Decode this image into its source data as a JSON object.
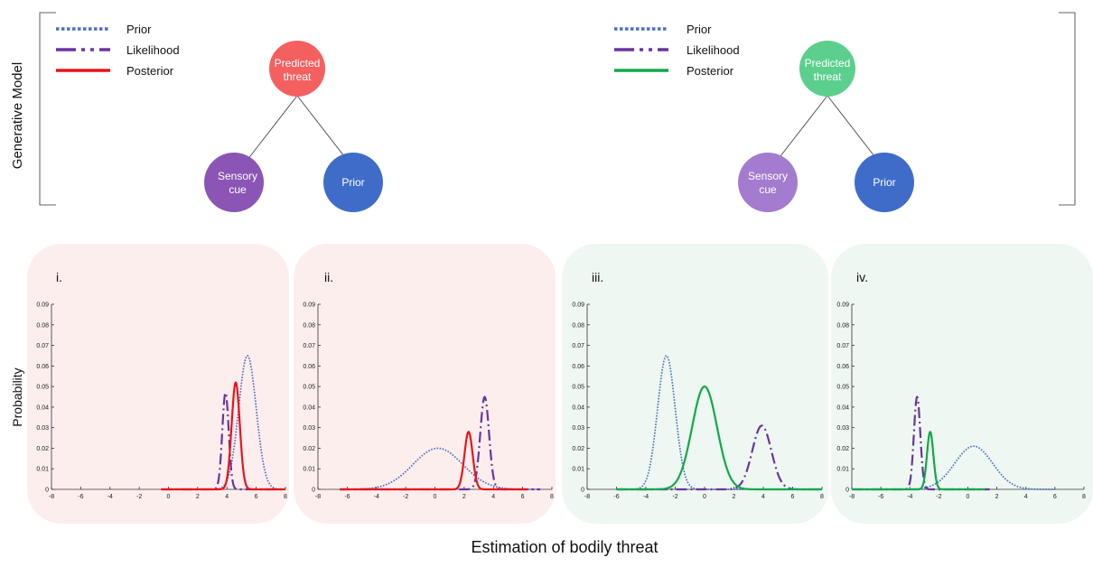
{
  "generative_model": {
    "label": "Generative Model",
    "left": {
      "legend": [
        {
          "label": "Prior",
          "style": "dotted",
          "color": "#4a6fc4"
        },
        {
          "label": "Likelihood",
          "style": "dashdot",
          "color": "#6a35a0"
        },
        {
          "label": "Posterior",
          "style": "solid",
          "color": "#e8141a"
        }
      ],
      "nodes": {
        "top": {
          "line1": "Predicted",
          "line2": "threat",
          "color": "#f46060"
        },
        "cue": {
          "line1": "Sensory",
          "line2": "cue",
          "color": "#8a55b5"
        },
        "prior": {
          "line1": "Prior",
          "color": "#3f6cc8"
        }
      }
    },
    "right": {
      "legend": [
        {
          "label": "Prior",
          "style": "dotted",
          "color": "#4a6fc4"
        },
        {
          "label": "Likelihood",
          "style": "dashdot",
          "color": "#6a35a0"
        },
        {
          "label": "Posterior",
          "style": "solid",
          "color": "#12a84a"
        }
      ],
      "nodes": {
        "top": {
          "line1": "Predicted",
          "line2": "threat",
          "color": "#5ccf8c"
        },
        "cue": {
          "line1": "Sensory",
          "line2": "cue",
          "color": "#a47ccf"
        },
        "prior": {
          "line1": "Prior",
          "color": "#3f6cc8"
        }
      }
    }
  },
  "y_axis_label": "Probability",
  "x_axis_label": "Estimation of bodily threat",
  "colors": {
    "prior": "#4a6fc4",
    "likelihood": "#6a35a0",
    "posterior_red": "#e8141a",
    "posterior_green": "#12a84a",
    "panel_red": "#fdeeee",
    "panel_green": "#eef7f1"
  },
  "chart_data": [
    {
      "type": "line",
      "panel": "i.",
      "theme": "red",
      "xlim": [
        -8,
        8
      ],
      "ylim": [
        0,
        0.09
      ],
      "xticks": [
        "-8",
        "-6",
        "-4",
        "-2",
        "0",
        "2",
        "4",
        "6",
        "8"
      ],
      "yticks": [
        "0",
        "0.01",
        "0.02",
        "0.03",
        "0.04",
        "0.05",
        "0.06",
        "0.07",
        "0.08",
        "0.09"
      ],
      "series": [
        {
          "name": "Prior",
          "kind": "prior",
          "mean": 5.4,
          "peak": 0.065,
          "sd": 0.6,
          "range": [
            -0.5,
            8
          ]
        },
        {
          "name": "Likelihood",
          "kind": "likelihood",
          "mean": 3.9,
          "peak": 0.047,
          "sd": 0.22,
          "range": [
            -0.5,
            8
          ]
        },
        {
          "name": "Posterior",
          "kind": "posterior",
          "mean": 4.6,
          "peak": 0.052,
          "sd": 0.28,
          "range": [
            -0.5,
            8
          ]
        }
      ]
    },
    {
      "type": "line",
      "panel": "ii.",
      "theme": "red",
      "xlim": [
        -8,
        8
      ],
      "ylim": [
        0,
        0.09
      ],
      "xticks": [
        "-8",
        "-6",
        "-4",
        "-2",
        "0",
        "2",
        "4",
        "6",
        "8"
      ],
      "yticks": [
        "0",
        "0.01",
        "0.02",
        "0.03",
        "0.04",
        "0.05",
        "0.06",
        "0.07",
        "0.08",
        "0.09"
      ],
      "series": [
        {
          "name": "Prior",
          "kind": "prior",
          "mean": 0.2,
          "peak": 0.02,
          "sd": 1.7,
          "range": [
            -6.5,
            7.2
          ]
        },
        {
          "name": "Likelihood",
          "kind": "likelihood",
          "mean": 3.4,
          "peak": 0.045,
          "sd": 0.3,
          "range": [
            -6.5,
            7.2
          ]
        },
        {
          "name": "Posterior",
          "kind": "posterior",
          "mean": 2.3,
          "peak": 0.028,
          "sd": 0.28,
          "range": [
            -6.5,
            6.3
          ]
        }
      ]
    },
    {
      "type": "line",
      "panel": "iii.",
      "theme": "green",
      "xlim": [
        -8,
        8
      ],
      "ylim": [
        0,
        0.09
      ],
      "xticks": [
        "-8",
        "-6",
        "-4",
        "-2",
        "0",
        "2",
        "4",
        "6",
        "8"
      ],
      "yticks": [
        "0",
        "0.01",
        "0.02",
        "0.03",
        "0.04",
        "0.05",
        "0.06",
        "0.07",
        "0.08",
        "0.09"
      ],
      "series": [
        {
          "name": "Prior",
          "kind": "prior",
          "mean": -2.6,
          "peak": 0.065,
          "sd": 0.6,
          "range": [
            -6,
            6
          ]
        },
        {
          "name": "Likelihood",
          "kind": "likelihood",
          "mean": 3.9,
          "peak": 0.031,
          "sd": 0.65,
          "range": [
            -6,
            8
          ]
        },
        {
          "name": "Posterior",
          "kind": "posterior",
          "mean": 0.0,
          "peak": 0.05,
          "sd": 0.85,
          "range": [
            -6,
            8
          ]
        }
      ]
    },
    {
      "type": "line",
      "panel": "iv.",
      "theme": "green",
      "xlim": [
        -8,
        8
      ],
      "ylim": [
        0,
        0.09
      ],
      "xticks": [
        "-8",
        "-6",
        "-4",
        "-2",
        "0",
        "2",
        "4",
        "6",
        "8"
      ],
      "yticks": [
        "0",
        "0.01",
        "0.02",
        "0.03",
        "0.04",
        "0.05",
        "0.06",
        "0.07",
        "0.08",
        "0.09"
      ],
      "series": [
        {
          "name": "Prior",
          "kind": "prior",
          "mean": 0.4,
          "peak": 0.021,
          "sd": 1.3,
          "range": [
            -8,
            6
          ]
        },
        {
          "name": "Likelihood",
          "kind": "likelihood",
          "mean": -3.5,
          "peak": 0.045,
          "sd": 0.22,
          "range": [
            -8,
            1.5
          ]
        },
        {
          "name": "Posterior",
          "kind": "posterior",
          "mean": -2.6,
          "peak": 0.028,
          "sd": 0.22,
          "range": [
            -8,
            1.2
          ]
        }
      ]
    }
  ]
}
